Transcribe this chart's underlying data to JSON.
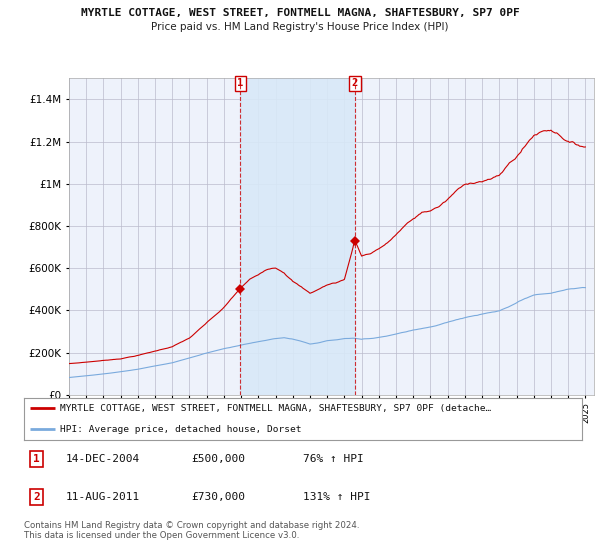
{
  "title1": "MYRTLE COTTAGE, WEST STREET, FONTMELL MAGNA, SHAFTESBURY, SP7 0PF",
  "title2": "Price paid vs. HM Land Registry's House Price Index (HPI)",
  "ylim": [
    0,
    1500000
  ],
  "xlim": [
    1995.0,
    2025.5
  ],
  "yticks": [
    0,
    200000,
    400000,
    600000,
    800000,
    1000000,
    1200000,
    1400000
  ],
  "ytick_labels": [
    "£0",
    "£200K",
    "£400K",
    "£600K",
    "£800K",
    "£1M",
    "£1.2M",
    "£1.4M"
  ],
  "sale_dates": [
    2004.958,
    2011.608
  ],
  "sale_prices": [
    500000,
    730000
  ],
  "sale_labels": [
    "1",
    "2"
  ],
  "sale_info": [
    [
      "14-DEC-2004",
      "£500,000",
      "76% ↑ HPI"
    ],
    [
      "11-AUG-2011",
      "£730,000",
      "131% ↑ HPI"
    ]
  ],
  "legend_entries": [
    "MYRTLE COTTAGE, WEST STREET, FONTMELL MAGNA, SHAFTESBURY, SP7 0PF (detache…",
    "HPI: Average price, detached house, Dorset"
  ],
  "line_colors": [
    "#cc0000",
    "#7aaadd"
  ],
  "shade_color": "#d8e8f8",
  "footnote": "Contains HM Land Registry data © Crown copyright and database right 2024.\nThis data is licensed under the Open Government Licence v3.0.",
  "background_color": "#ffffff",
  "plot_bg": "#eef2fb",
  "grid_color": "#bbbbcc"
}
